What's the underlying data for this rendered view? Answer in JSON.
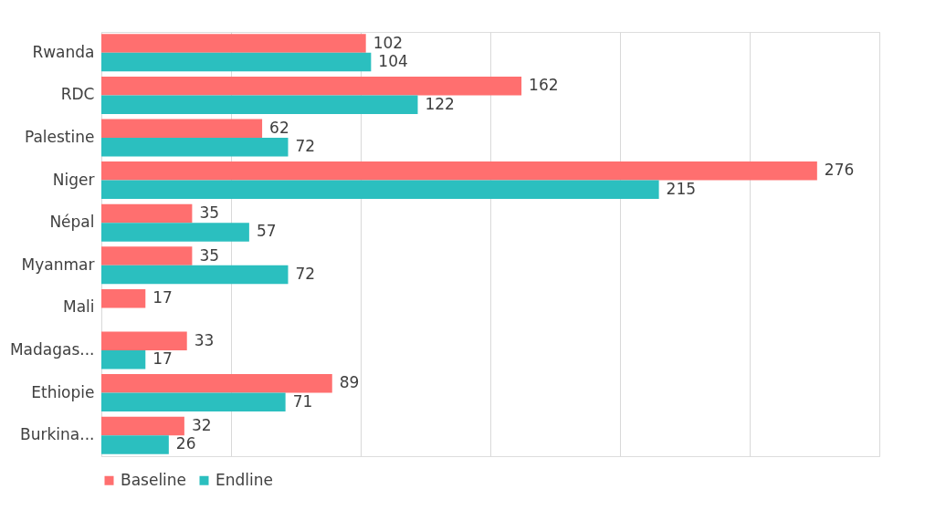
{
  "chart_data": {
    "type": "bar",
    "orientation": "horizontal",
    "categories": [
      "Rwanda",
      "RDC",
      "Palestine",
      "Niger",
      "Népal",
      "Myanmar",
      "Mali",
      "Madagas...",
      "Ethiopie",
      "Burkina..."
    ],
    "series": [
      {
        "name": "Baseline",
        "color": "#ff6f6f",
        "values": [
          102,
          162,
          62,
          276,
          35,
          35,
          17,
          33,
          89,
          32
        ]
      },
      {
        "name": "Endline",
        "color": "#2bbfbf",
        "values": [
          104,
          122,
          72,
          215,
          57,
          72,
          null,
          17,
          71,
          26
        ]
      }
    ],
    "xlim": [
      0,
      300
    ],
    "xticks": [
      {
        "value": 0,
        "label": null
      },
      {
        "value": 50,
        "label": null
      },
      {
        "value": 100,
        "label": null
      },
      {
        "value": 150,
        "label": null
      },
      {
        "value": 200,
        "label": null
      },
      {
        "value": 250,
        "label": null
      },
      {
        "value": 300,
        "label": null
      }
    ],
    "tick_labels": "y",
    "grid": "x",
    "legend": "bottom",
    "data_labels": true
  }
}
